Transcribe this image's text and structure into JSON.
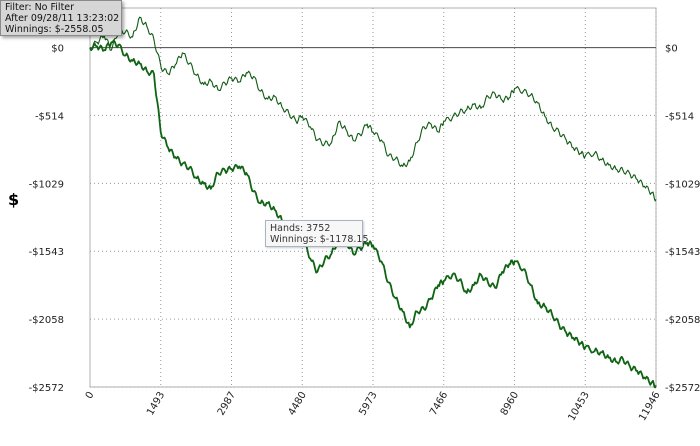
{
  "filter_panel": {
    "filter": "Filter: No Filter",
    "after": "After 09/28/11 13:23:02",
    "winnings": "Winnings: $-2558.05"
  },
  "tooltip": {
    "hands": "Hands: 3752",
    "winnings": "Winnings: $-1178.15"
  },
  "colors": {
    "series_dark": "#0f6414",
    "series_light": "#0f5a12",
    "zero_line": "#4a4a4a",
    "grid": "#9a9a9a"
  },
  "chart_data": {
    "type": "line",
    "title": "",
    "xlabel": "",
    "ylabel": "$",
    "xlim": [
      0,
      11946
    ],
    "ylim": [
      -2572,
      300
    ],
    "grid": true,
    "x_ticks": [
      "0",
      "1493",
      "2987",
      "4480",
      "5973",
      "7466",
      "8960",
      "10453",
      "11946"
    ],
    "y_ticks_left": [
      "$0",
      "-$514",
      "-$1029",
      "-$1543",
      "-$2058",
      "-$2572"
    ],
    "y_ticks_right": [
      "$0",
      "-$514",
      "-$1029",
      "-$1543",
      "-$2058",
      "-$2572"
    ],
    "y_tick_values": [
      0,
      -514,
      -1029,
      -1543,
      -2058,
      -2572
    ],
    "series": [
      {
        "style": "thin",
        "points": [
          [
            0,
            0
          ],
          [
            150,
            40
          ],
          [
            300,
            90
          ],
          [
            450,
            -20
          ],
          [
            600,
            130
          ],
          [
            750,
            120
          ],
          [
            900,
            80
          ],
          [
            1050,
            230
          ],
          [
            1200,
            160
          ],
          [
            1350,
            60
          ],
          [
            1500,
            -150
          ],
          [
            1650,
            -200
          ],
          [
            1800,
            -130
          ],
          [
            1950,
            -40
          ],
          [
            2100,
            -120
          ],
          [
            2250,
            -210
          ],
          [
            2400,
            -280
          ],
          [
            2550,
            -250
          ],
          [
            2700,
            -320
          ],
          [
            2850,
            -270
          ],
          [
            2987,
            -230
          ],
          [
            3150,
            -260
          ],
          [
            3300,
            -190
          ],
          [
            3450,
            -220
          ],
          [
            3600,
            -330
          ],
          [
            3750,
            -390
          ],
          [
            3900,
            -370
          ],
          [
            4050,
            -450
          ],
          [
            4200,
            -500
          ],
          [
            4350,
            -560
          ],
          [
            4480,
            -520
          ],
          [
            4650,
            -600
          ],
          [
            4800,
            -700
          ],
          [
            4950,
            -730
          ],
          [
            5100,
            -720
          ],
          [
            5250,
            -560
          ],
          [
            5400,
            -620
          ],
          [
            5550,
            -700
          ],
          [
            5700,
            -660
          ],
          [
            5850,
            -580
          ],
          [
            5973,
            -640
          ],
          [
            6150,
            -700
          ],
          [
            6300,
            -820
          ],
          [
            6450,
            -840
          ],
          [
            6600,
            -900
          ],
          [
            6750,
            -860
          ],
          [
            6900,
            -720
          ],
          [
            7050,
            -600
          ],
          [
            7200,
            -580
          ],
          [
            7350,
            -640
          ],
          [
            7466,
            -560
          ],
          [
            7650,
            -530
          ],
          [
            7800,
            -490
          ],
          [
            7950,
            -470
          ],
          [
            8100,
            -430
          ],
          [
            8250,
            -460
          ],
          [
            8400,
            -370
          ],
          [
            8550,
            -350
          ],
          [
            8700,
            -400
          ],
          [
            8850,
            -380
          ],
          [
            8960,
            -310
          ],
          [
            9150,
            -330
          ],
          [
            9300,
            -360
          ],
          [
            9450,
            -420
          ],
          [
            9600,
            -520
          ],
          [
            9750,
            -600
          ],
          [
            9900,
            -640
          ],
          [
            10050,
            -700
          ],
          [
            10200,
            -760
          ],
          [
            10350,
            -800
          ],
          [
            10453,
            -820
          ],
          [
            10650,
            -800
          ],
          [
            10800,
            -850
          ],
          [
            10950,
            -890
          ],
          [
            11100,
            -920
          ],
          [
            11250,
            -930
          ],
          [
            11400,
            -960
          ],
          [
            11550,
            -1000
          ],
          [
            11700,
            -1050
          ],
          [
            11850,
            -1100
          ],
          [
            11946,
            -1150
          ]
        ]
      },
      {
        "style": "thick",
        "points": [
          [
            0,
            0
          ],
          [
            150,
            10
          ],
          [
            300,
            -20
          ],
          [
            450,
            40
          ],
          [
            600,
            20
          ],
          [
            750,
            -60
          ],
          [
            900,
            -100
          ],
          [
            1050,
            -120
          ],
          [
            1200,
            -180
          ],
          [
            1350,
            -200
          ],
          [
            1493,
            -640
          ],
          [
            1650,
            -760
          ],
          [
            1800,
            -830
          ],
          [
            1950,
            -880
          ],
          [
            2100,
            -910
          ],
          [
            2250,
            -990
          ],
          [
            2400,
            -1030
          ],
          [
            2550,
            -1070
          ],
          [
            2700,
            -950
          ],
          [
            2850,
            -930
          ],
          [
            2987,
            -920
          ],
          [
            3150,
            -900
          ],
          [
            3300,
            -950
          ],
          [
            3450,
            -1090
          ],
          [
            3600,
            -1180
          ],
          [
            3752,
            -1178
          ],
          [
            3900,
            -1230
          ],
          [
            4050,
            -1310
          ],
          [
            4200,
            -1380
          ],
          [
            4350,
            -1420
          ],
          [
            4480,
            -1440
          ],
          [
            4650,
            -1600
          ],
          [
            4800,
            -1700
          ],
          [
            4950,
            -1610
          ],
          [
            5100,
            -1560
          ],
          [
            5250,
            -1450
          ],
          [
            5400,
            -1460
          ],
          [
            5550,
            -1560
          ],
          [
            5700,
            -1520
          ],
          [
            5850,
            -1480
          ],
          [
            5973,
            -1500
          ],
          [
            6150,
            -1620
          ],
          [
            6300,
            -1780
          ],
          [
            6450,
            -1900
          ],
          [
            6600,
            -2000
          ],
          [
            6750,
            -2120
          ],
          [
            6900,
            -2000
          ],
          [
            7050,
            -1980
          ],
          [
            7200,
            -1900
          ],
          [
            7350,
            -1800
          ],
          [
            7466,
            -1770
          ],
          [
            7650,
            -1720
          ],
          [
            7800,
            -1760
          ],
          [
            7950,
            -1860
          ],
          [
            8100,
            -1800
          ],
          [
            8250,
            -1720
          ],
          [
            8400,
            -1780
          ],
          [
            8550,
            -1820
          ],
          [
            8700,
            -1700
          ],
          [
            8850,
            -1640
          ],
          [
            8960,
            -1620
          ],
          [
            9150,
            -1680
          ],
          [
            9300,
            -1800
          ],
          [
            9450,
            -1940
          ],
          [
            9600,
            -1960
          ],
          [
            9750,
            -2020
          ],
          [
            9900,
            -2100
          ],
          [
            10050,
            -2160
          ],
          [
            10200,
            -2200
          ],
          [
            10350,
            -2240
          ],
          [
            10453,
            -2270
          ],
          [
            10650,
            -2300
          ],
          [
            10800,
            -2310
          ],
          [
            10950,
            -2350
          ],
          [
            11100,
            -2380
          ],
          [
            11250,
            -2360
          ],
          [
            11400,
            -2420
          ],
          [
            11550,
            -2450
          ],
          [
            11700,
            -2500
          ],
          [
            11850,
            -2540
          ],
          [
            11946,
            -2560
          ]
        ]
      }
    ]
  }
}
